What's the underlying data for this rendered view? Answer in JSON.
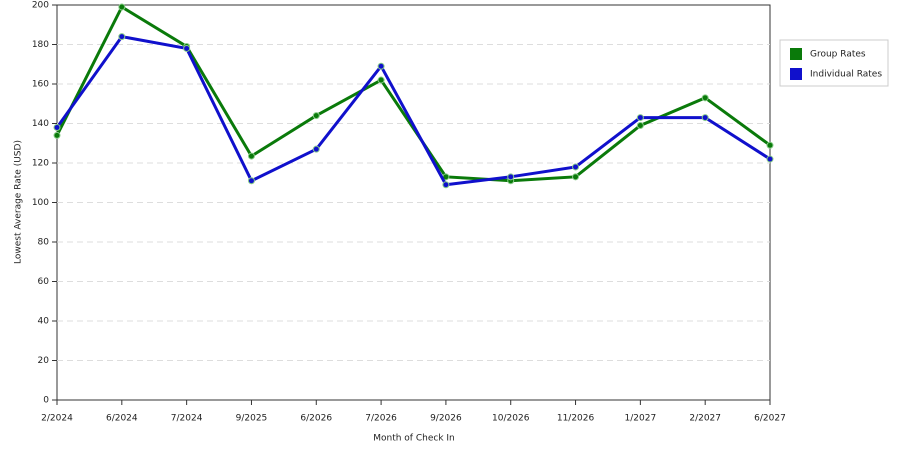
{
  "chart_data": {
    "type": "line",
    "x_label": "Month of Check In",
    "y_label": "Lowest Average Rate (USD)",
    "categories": [
      "2/2024",
      "6/2024",
      "7/2024",
      "9/2025",
      "6/2026",
      "7/2026",
      "9/2026",
      "10/2026",
      "11/2026",
      "1/2027",
      "2/2027",
      "6/2027"
    ],
    "series": [
      {
        "name": "Group Rates",
        "color": "#0a7a0a",
        "values": [
          134,
          199,
          179,
          123.5,
          144,
          162,
          113,
          111,
          113,
          139,
          153,
          129
        ]
      },
      {
        "name": "Individual Rates",
        "color": "#1010cc",
        "values": [
          138,
          184,
          178,
          111,
          127,
          169,
          109,
          113,
          118,
          143,
          143,
          122
        ]
      }
    ],
    "ylim": [
      0,
      200
    ],
    "yticks": [
      0,
      20,
      40,
      60,
      80,
      100,
      120,
      140,
      160,
      180,
      200
    ],
    "grid": true,
    "legend": "right"
  }
}
